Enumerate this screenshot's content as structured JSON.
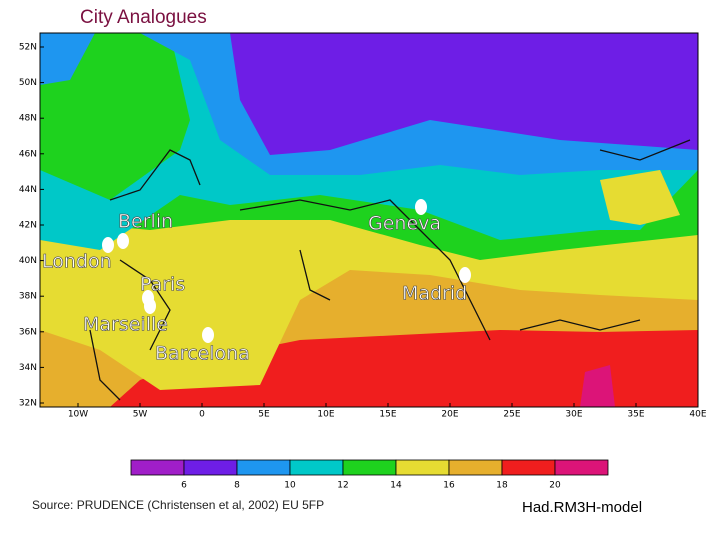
{
  "title": "City Analogues",
  "map": {
    "lat_labels": [
      "52N",
      "50N",
      "48N",
      "46N",
      "44N",
      "42N",
      "40N",
      "38N",
      "36N",
      "34N",
      "32N"
    ],
    "lon_labels": [
      "10W",
      "5W",
      "0",
      "5E",
      "10E",
      "15E",
      "20E",
      "25E",
      "30E",
      "35E",
      "40E"
    ],
    "cities": [
      {
        "label": "London"
      },
      {
        "label": "Berlin"
      },
      {
        "label": "Paris"
      },
      {
        "label": "Marseille"
      },
      {
        "label": "Barcelona"
      },
      {
        "label": "Geneva"
      },
      {
        "label": "Madrid"
      }
    ]
  },
  "colorbar": {
    "ticks": [
      6,
      8,
      10,
      12,
      14,
      16,
      18,
      20
    ],
    "colors": [
      "#a01ec8",
      "#6e1ee6",
      "#1e96f0",
      "#00c8c8",
      "#1ed21e",
      "#e6dc32",
      "#e6af2d",
      "#f01e1e",
      "#dc1478"
    ]
  },
  "source": "Source: PRUDENCE  (Christensen et al, 2002) EU 5FP",
  "model": "Had.RM3H-model"
}
